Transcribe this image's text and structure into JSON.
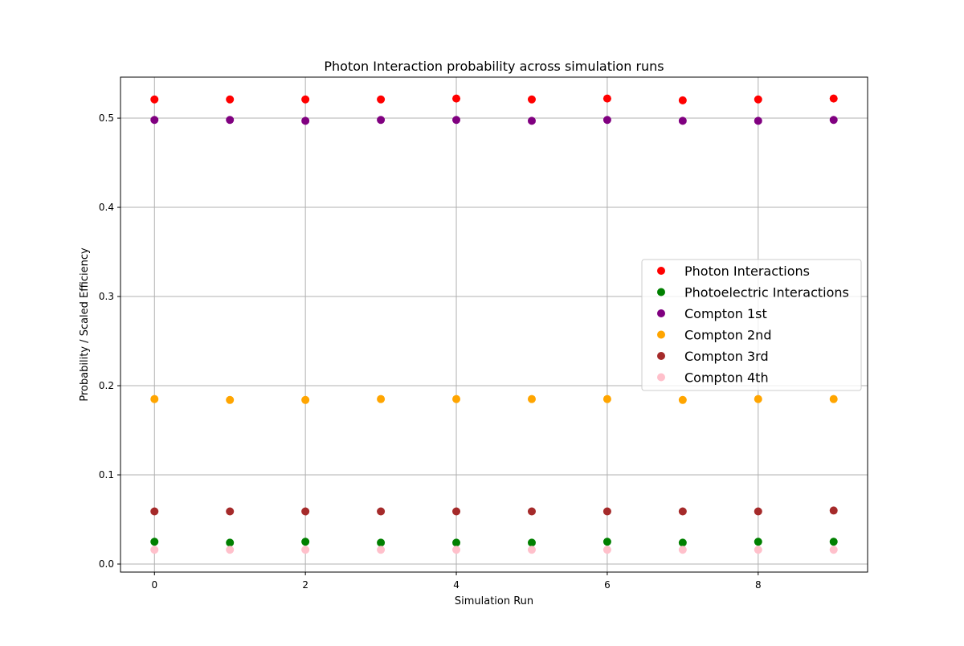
{
  "chart_data": {
    "type": "scatter",
    "title": "Photon Interaction probability across simulation runs",
    "xlabel": "Simulation Run",
    "ylabel": "Probability / Scaled Efficiency",
    "xlim": [
      -0.45,
      9.45
    ],
    "ylim": [
      -0.009,
      0.546
    ],
    "x_ticks": [
      0,
      2,
      4,
      6,
      8
    ],
    "y_ticks": [
      0.0,
      0.1,
      0.2,
      0.3,
      0.4,
      0.5
    ],
    "grid": true,
    "legend_position": "center-right",
    "x": [
      0,
      1,
      2,
      3,
      4,
      5,
      6,
      7,
      8,
      9
    ],
    "series": [
      {
        "name": "Photon Interactions",
        "color": "#ff0000",
        "values": [
          0.521,
          0.521,
          0.521,
          0.521,
          0.522,
          0.521,
          0.522,
          0.52,
          0.521,
          0.522
        ]
      },
      {
        "name": "Photoelectric Interactions",
        "color": "#008000",
        "values": [
          0.025,
          0.024,
          0.025,
          0.024,
          0.024,
          0.024,
          0.025,
          0.024,
          0.025,
          0.025
        ]
      },
      {
        "name": "Compton 1st",
        "color": "#800080",
        "values": [
          0.498,
          0.498,
          0.497,
          0.498,
          0.498,
          0.497,
          0.498,
          0.497,
          0.497,
          0.498
        ]
      },
      {
        "name": "Compton 2nd",
        "color": "#ffa500",
        "values": [
          0.185,
          0.184,
          0.184,
          0.185,
          0.185,
          0.185,
          0.185,
          0.184,
          0.185,
          0.185
        ]
      },
      {
        "name": "Compton 3rd",
        "color": "#a52a2a",
        "values": [
          0.059,
          0.059,
          0.059,
          0.059,
          0.059,
          0.059,
          0.059,
          0.059,
          0.059,
          0.06
        ]
      },
      {
        "name": "Compton 4th",
        "color": "#ffc0cb",
        "values": [
          0.016,
          0.016,
          0.016,
          0.016,
          0.016,
          0.016,
          0.016,
          0.016,
          0.016,
          0.016
        ]
      }
    ]
  }
}
